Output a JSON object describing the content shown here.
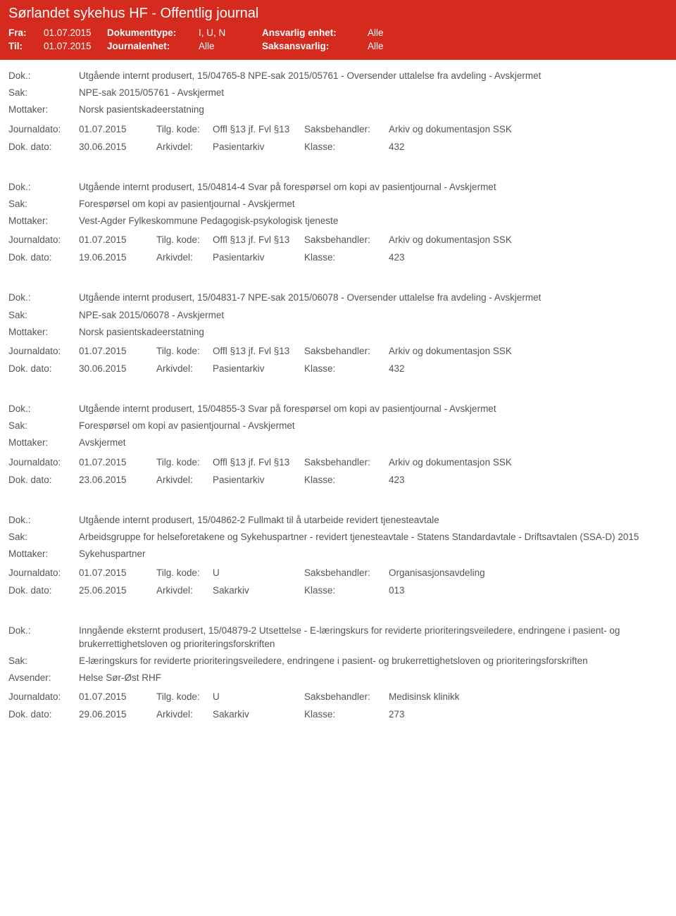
{
  "header": {
    "title": "Sørlandet sykehus HF - Offentlig journal",
    "fra_label": "Fra:",
    "fra_value": "01.07.2015",
    "til_label": "Til:",
    "til_value": "01.07.2015",
    "doktype_label": "Dokumenttype:",
    "doktype_value": "I, U, N",
    "journalenhet_label": "Journalenhet:",
    "journalenhet_value": "Alle",
    "ansvarlig_label": "Ansvarlig enhet:",
    "ansvarlig_value": "Alle",
    "saksansvarlig_label": "Saksansvarlig:",
    "saksansvarlig_value": "Alle"
  },
  "labels": {
    "dok": "Dok.:",
    "sak": "Sak:",
    "mottaker": "Mottaker:",
    "avsender": "Avsender:",
    "journaldato": "Journaldato:",
    "tilgkode": "Tilg. kode:",
    "saksbehandler": "Saksbehandler:",
    "dokdato": "Dok. dato:",
    "arkivdel": "Arkivdel:",
    "klasse": "Klasse:"
  },
  "entries": [
    {
      "dok": "Utgående internt produsert, 15/04765-8 NPE-sak 2015/05761 - Oversender uttalelse fra avdeling - Avskjermet",
      "sak": "NPE-sak 2015/05761 - Avskjermet",
      "party_label": "Mottaker:",
      "party_value": "Norsk pasientskadeerstatning",
      "journaldato": "01.07.2015",
      "tilgkode": "Offl §13 jf. Fvl §13",
      "saksbehandler": "Arkiv og dokumentasjon SSK",
      "dokdato": "30.06.2015",
      "arkivdel": "Pasientarkiv",
      "klasse": "432"
    },
    {
      "dok": "Utgående internt produsert, 15/04814-4 Svar på forespørsel om kopi av pasientjournal - Avskjermet",
      "sak": "Forespørsel om kopi av pasientjournal - Avskjermet",
      "party_label": "Mottaker:",
      "party_value": "Vest-Agder Fylkeskommune Pedagogisk-psykologisk tjeneste",
      "journaldato": "01.07.2015",
      "tilgkode": "Offl §13 jf. Fvl §13",
      "saksbehandler": "Arkiv og dokumentasjon SSK",
      "dokdato": "19.06.2015",
      "arkivdel": "Pasientarkiv",
      "klasse": "423"
    },
    {
      "dok": "Utgående internt produsert, 15/04831-7 NPE-sak 2015/06078 - Oversender uttalelse fra avdeling - Avskjermet",
      "sak": "NPE-sak 2015/06078 - Avskjermet",
      "party_label": "Mottaker:",
      "party_value": "Norsk pasientskadeerstatning",
      "journaldato": "01.07.2015",
      "tilgkode": "Offl §13 jf. Fvl §13",
      "saksbehandler": "Arkiv og dokumentasjon SSK",
      "dokdato": "30.06.2015",
      "arkivdel": "Pasientarkiv",
      "klasse": "432"
    },
    {
      "dok": "Utgående internt produsert, 15/04855-3 Svar på forespørsel om kopi av pasientjournal - Avskjermet",
      "sak": "Forespørsel om kopi av pasientjournal - Avskjermet",
      "party_label": "Mottaker:",
      "party_value": "Avskjermet",
      "journaldato": "01.07.2015",
      "tilgkode": "Offl §13 jf. Fvl §13",
      "saksbehandler": "Arkiv og dokumentasjon SSK",
      "dokdato": "23.06.2015",
      "arkivdel": "Pasientarkiv",
      "klasse": "423"
    },
    {
      "dok": "Utgående internt produsert, 15/04862-2 Fullmakt til å utarbeide revidert tjenesteavtale",
      "sak": "Arbeidsgruppe for helseforetakene og Sykehuspartner - revidert tjenesteavtale - Statens Standardavtale - Driftsavtalen (SSA-D) 2015",
      "party_label": "Mottaker:",
      "party_value": "Sykehuspartner",
      "journaldato": "01.07.2015",
      "tilgkode": "U",
      "saksbehandler": "Organisasjonsavdeling",
      "dokdato": "25.06.2015",
      "arkivdel": "Sakarkiv",
      "klasse": "013"
    },
    {
      "dok": "Inngående eksternt produsert, 15/04879-2 Utsettelse - E-læringskurs for reviderte prioriteringsveiledere, endringene i pasient- og brukerrettighetsloven og prioriteringsforskriften",
      "sak": "E-læringskurs for reviderte prioriteringsveiledere, endringene i pasient- og brukerrettighetsloven og prioriteringsforskriften",
      "party_label": "Avsender:",
      "party_value": "Helse Sør-Øst RHF",
      "journaldato": "01.07.2015",
      "tilgkode": "U",
      "saksbehandler": "Medisinsk klinikk",
      "dokdato": "29.06.2015",
      "arkivdel": "Sakarkiv",
      "klasse": "273"
    }
  ]
}
